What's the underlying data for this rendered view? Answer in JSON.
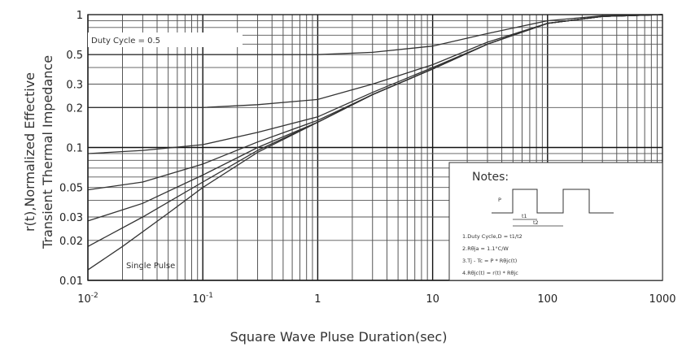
{
  "chart_data": {
    "type": "line",
    "xscale": "log",
    "yscale": "log",
    "xlim": [
      0.01,
      1000
    ],
    "ylim": [
      0.01,
      1
    ],
    "x_ticks": [
      {
        "value": 0.01,
        "base": "10",
        "exp": "-2"
      },
      {
        "value": 0.1,
        "base": "10",
        "exp": "-1"
      },
      {
        "value": 1,
        "label": "1"
      },
      {
        "value": 10,
        "label": "10"
      },
      {
        "value": 100,
        "label": "100"
      },
      {
        "value": 1000,
        "label": "1000"
      }
    ],
    "y_ticks": [
      {
        "value": 1,
        "label": "1"
      },
      {
        "value": 0.5,
        "label": "0.5"
      },
      {
        "value": 0.3,
        "label": "0.3"
      },
      {
        "value": 0.2,
        "label": "0.2"
      },
      {
        "value": 0.1,
        "label": "0.1"
      },
      {
        "value": 0.05,
        "label": "0.05"
      },
      {
        "value": 0.03,
        "label": "0.03"
      },
      {
        "value": 0.02,
        "label": "0.02"
      },
      {
        "value": 0.01,
        "label": "0.01"
      }
    ],
    "ylabel_line1": "r(t),Normalized Effective",
    "ylabel_line2": "Transient Thermal Impedance",
    "xlabel": "Square Wave Pluse Duration(sec)",
    "grid": true,
    "series": [
      {
        "name": "Duty Cycle = 0.5",
        "x": [
          0.01,
          0.1,
          1,
          3,
          10,
          30,
          100,
          300,
          1000
        ],
        "y": [
          0.5,
          0.5,
          0.5,
          0.52,
          0.58,
          0.72,
          0.9,
          0.98,
          1.0
        ]
      },
      {
        "x": [
          0.01,
          0.1,
          0.3,
          1,
          3,
          10,
          30,
          100,
          300,
          1000
        ],
        "y": [
          0.2,
          0.2,
          0.21,
          0.23,
          0.3,
          0.42,
          0.62,
          0.86,
          0.97,
          1.0
        ]
      },
      {
        "x": [
          0.01,
          0.03,
          0.1,
          0.3,
          1,
          3,
          10,
          30,
          100,
          300,
          1000
        ],
        "y": [
          0.09,
          0.095,
          0.105,
          0.13,
          0.17,
          0.26,
          0.4,
          0.6,
          0.86,
          0.97,
          1.0
        ]
      },
      {
        "x": [
          0.01,
          0.03,
          0.1,
          0.3,
          1,
          3,
          10,
          30,
          100,
          300,
          1000
        ],
        "y": [
          0.048,
          0.055,
          0.075,
          0.11,
          0.16,
          0.25,
          0.39,
          0.6,
          0.86,
          0.97,
          1.0
        ]
      },
      {
        "x": [
          0.01,
          0.03,
          0.1,
          0.3,
          1,
          3,
          10,
          30,
          100,
          300,
          1000
        ],
        "y": [
          0.028,
          0.038,
          0.062,
          0.1,
          0.155,
          0.25,
          0.39,
          0.6,
          0.86,
          0.97,
          1.0
        ]
      },
      {
        "x": [
          0.01,
          0.03,
          0.1,
          0.3,
          1,
          3,
          10,
          30,
          100,
          300,
          1000
        ],
        "y": [
          0.018,
          0.03,
          0.055,
          0.095,
          0.155,
          0.25,
          0.39,
          0.6,
          0.86,
          0.97,
          1.0
        ]
      },
      {
        "name": "Single Pulse",
        "x": [
          0.01,
          0.02,
          0.05,
          0.1,
          0.3,
          1,
          3,
          10,
          30,
          100,
          300,
          1000
        ],
        "y": [
          0.012,
          0.018,
          0.032,
          0.05,
          0.092,
          0.155,
          0.25,
          0.39,
          0.6,
          0.86,
          0.97,
          1.0
        ]
      }
    ],
    "annotations": {
      "duty_cycle_label": "Duty Cycle = 0.5",
      "single_pulse_label": "Single Pulse"
    },
    "notes": {
      "title": "Notes:",
      "lines": [
        "1.Duty Cycle,D = t1/t2",
        "2.Rθja = 1.1°C/W",
        "3.Tj - Tc = P * Rθjc(t)",
        "4.Rθjc(t) = r(t) * Rθjc"
      ]
    }
  }
}
